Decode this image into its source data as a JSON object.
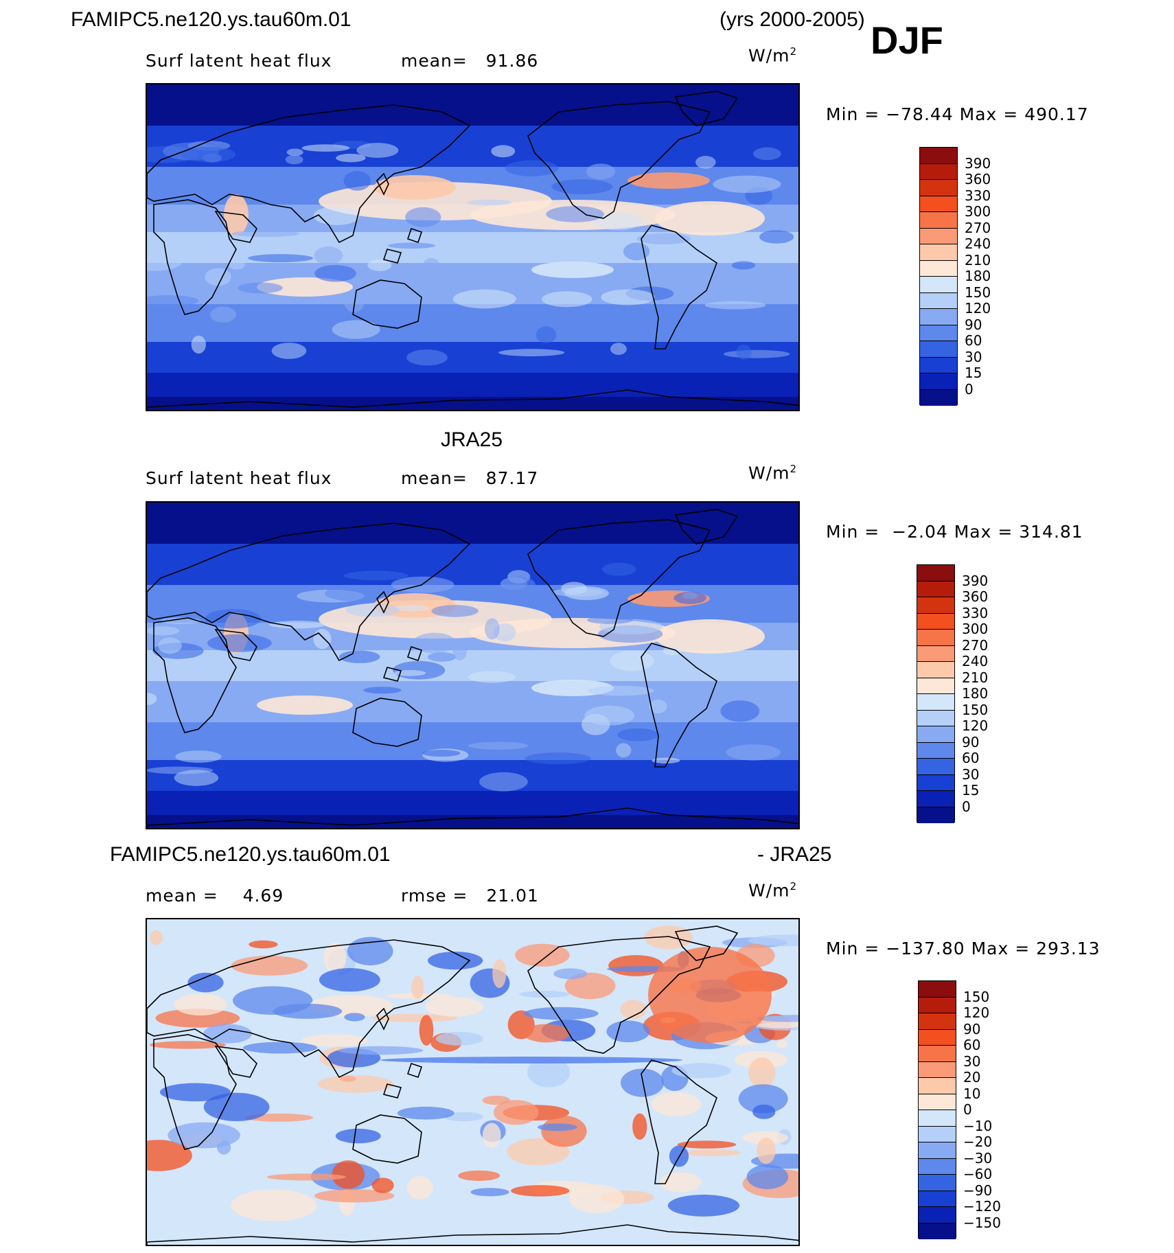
{
  "header": {
    "case_name": "FAMIPC5.ne120.ys.tau60m.01",
    "years": "(yrs 2000-2005)",
    "season": "DJF"
  },
  "panels": [
    {
      "id": "model",
      "variable": "Surf latent heat flux",
      "mean_text": "mean=   91.86",
      "units_base": "W/m",
      "units_exp": "2",
      "minmax": "Min = −78.44 Max = 490.17",
      "colorbar": {
        "labels": [
          "390",
          "360",
          "330",
          "300",
          "270",
          "240",
          "210",
          "180",
          "150",
          "120",
          "90",
          "60",
          "30",
          "15",
          "0"
        ],
        "colors": [
          "#8b0d0d",
          "#b51c0c",
          "#d4330f",
          "#f44f1e",
          "#f77449",
          "#fb9a76",
          "#fdc9ab",
          "#fde7d6",
          "#d4e6fa",
          "#b4d0f8",
          "#88aaf3",
          "#5e88ec",
          "#3564e3",
          "#1840d3",
          "#0a21b5",
          "#05108a"
        ]
      }
    },
    {
      "id": "obs",
      "title": "JRA25",
      "variable": "Surf latent heat flux",
      "mean_text": "mean=   87.17",
      "units_base": "W/m",
      "units_exp": "2",
      "minmax": "Min =  −2.04 Max = 314.81",
      "colorbar": {
        "labels": [
          "390",
          "360",
          "330",
          "300",
          "270",
          "240",
          "210",
          "180",
          "150",
          "120",
          "90",
          "60",
          "30",
          "15",
          "0"
        ],
        "colors": [
          "#8b0d0d",
          "#b51c0c",
          "#d4330f",
          "#f44f1e",
          "#f77449",
          "#fb9a76",
          "#fdc9ab",
          "#fde7d6",
          "#d4e6fa",
          "#b4d0f8",
          "#88aaf3",
          "#5e88ec",
          "#3564e3",
          "#1840d3",
          "#0a21b5",
          "#05108a"
        ]
      }
    },
    {
      "id": "diff",
      "title_left": "FAMIPC5.ne120.ys.tau60m.01",
      "title_right": "- JRA25",
      "mean_text": "mean =    4.69",
      "rmse_text": "rmse =   21.01",
      "units_base": "W/m",
      "units_exp": "2",
      "minmax": "Min = −137.80 Max = 293.13",
      "colorbar": {
        "labels": [
          "150",
          "120",
          "90",
          "60",
          "30",
          "20",
          "10",
          "0",
          "−10",
          "−20",
          "−30",
          "−60",
          "−90",
          "−120",
          "−150"
        ],
        "colors": [
          "#8b0d0d",
          "#b51c0c",
          "#d4330f",
          "#f44f1e",
          "#f77449",
          "#fb9a76",
          "#fdc9ab",
          "#fde7d6",
          "#d4e6fa",
          "#b4d0f8",
          "#88aaf3",
          "#5e88ec",
          "#3564e3",
          "#1840d3",
          "#0a21b5",
          "#05108a"
        ]
      }
    }
  ]
}
